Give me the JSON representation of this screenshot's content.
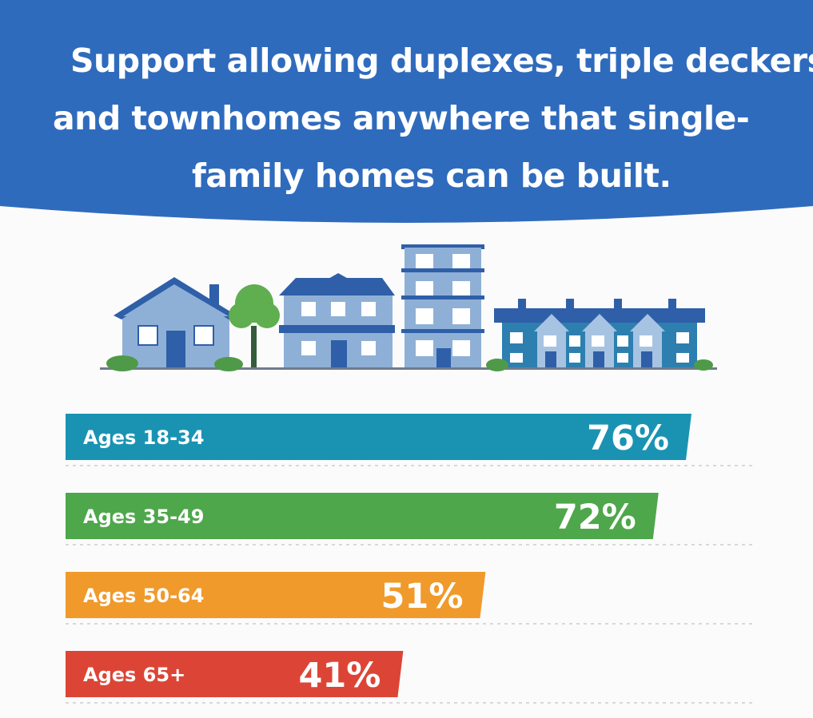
{
  "header": {
    "title_lines": [
      "Support allowing duplexes, triple deckers",
      "and townhomes anywhere that single-",
      "family homes can be built."
    ],
    "background": "#2f6bbd"
  },
  "illustration": {
    "icons": [
      "single-family-house-icon",
      "tree-icon",
      "two-story-house-icon",
      "apartment-building-icon",
      "townhomes-icon"
    ]
  },
  "chart_data": {
    "type": "bar",
    "orientation": "horizontal",
    "categories": [
      "Ages 18-34",
      "Ages 35-49",
      "Ages 50-64",
      "Ages 65+"
    ],
    "values": [
      76,
      72,
      51,
      41
    ],
    "value_labels": [
      "76%",
      "72%",
      "51%",
      "41%"
    ],
    "colors": [
      "#1a93b3",
      "#4ea74b",
      "#f09a2b",
      "#dc4536"
    ],
    "xlim": [
      0,
      100
    ],
    "grid": false
  }
}
